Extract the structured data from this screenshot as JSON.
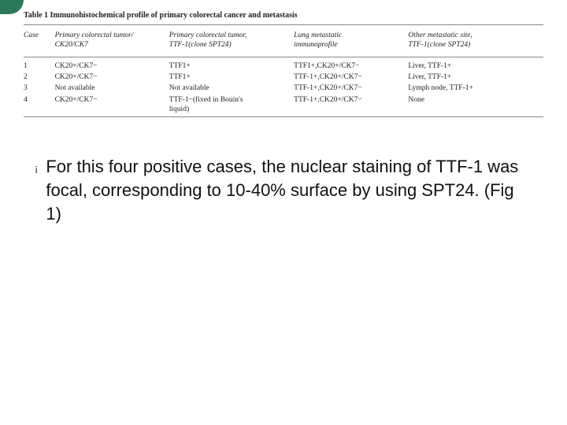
{
  "corner": {
    "color": "#2a7a5a"
  },
  "table": {
    "caption": "Table 1 Immunohistochemical profile of primary colorectal cancer and metastasis",
    "headers": {
      "case": "Case",
      "col1a": "Primary colorectal tumor/",
      "col1b": "CK20/CK7",
      "col2a": "Primary colorectal tumor,",
      "col2b": "TTF-1(clone SPT24)",
      "col3a": "Lung metastatic",
      "col3b": "immunoprofile",
      "col4a": "Other metastatic site,",
      "col4b": "TTF-1(clone SPT24)"
    },
    "rows": [
      {
        "case": "1",
        "c1": "CK20+/CK7−",
        "c2": "TTF1+",
        "c3": "TTF1+,CK20+/CK7−",
        "c4": "Liver, TTF-1+"
      },
      {
        "case": "2",
        "c1": "CK20+/CK7−",
        "c2": "TTF1+",
        "c3": "TTF-1+,CK20+/CK7−",
        "c4": "Liver, TTF-1+"
      },
      {
        "case": "3",
        "c1": "Not available",
        "c2": "Not available",
        "c3": "TTF-1+,CK20+/CK7−",
        "c4": "Lymph node, TTF-1+"
      },
      {
        "case": "4",
        "c1": "CK20+/CK7−",
        "c2a": "TTF-1−(fixed in Bouin's",
        "c2b": "liquid)",
        "c3": "TTF-1+,CK20+/CK7−",
        "c4": "None"
      }
    ]
  },
  "body": {
    "bullet_glyph": "¡",
    "text": "For this four positive cases, the nuclear staining of TTF-1 was focal, corresponding to 10-40% surface by using SPT24. (Fig 1)"
  }
}
